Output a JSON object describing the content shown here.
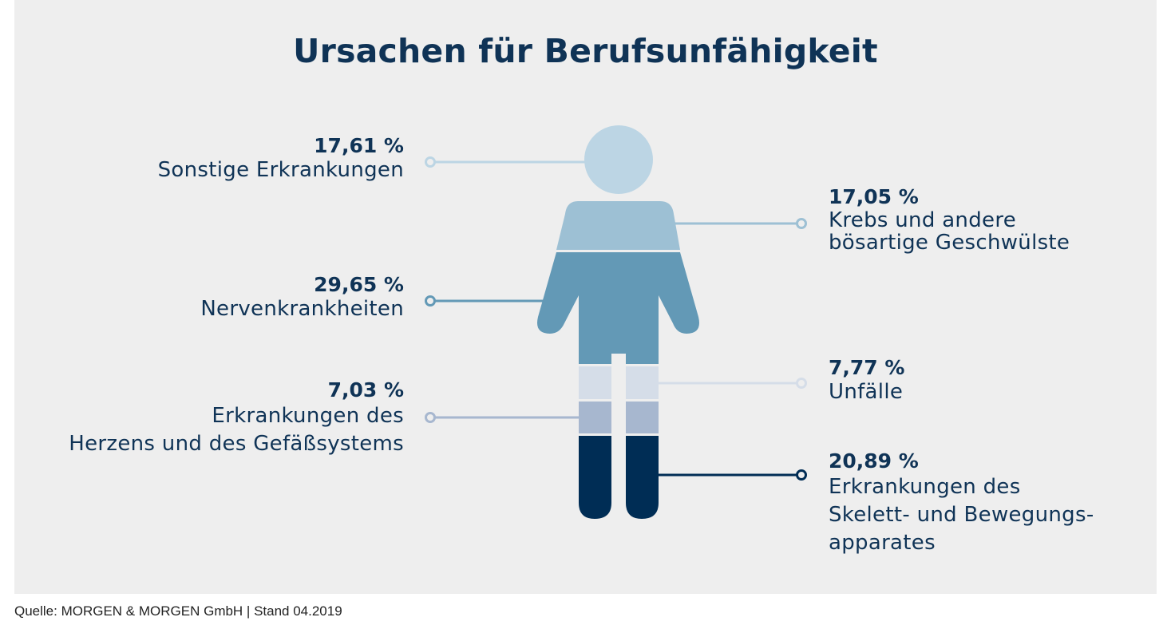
{
  "title": "Ursachen für Berufsunfähigkeit",
  "source": "Quelle: MORGEN & MORGEN GmbH | Stand 04.2019",
  "colors": {
    "background_panel": "#eeeeee",
    "text": "#0f3356",
    "sonstige": "#bcd5e4",
    "krebs": "#9dc0d4",
    "nerven": "#6399b6",
    "unfaelle": "#d5dde8",
    "herz": "#a7b7cf",
    "skelett": "#002d55"
  },
  "chart_data": {
    "type": "pie",
    "title": "Ursachen für Berufsunfähigkeit",
    "unit": "%",
    "segments": [
      {
        "label": "Sonstige Erkrankungen",
        "value": 17.61,
        "display": "17,61 %",
        "color": "#bcd5e4",
        "body_part": "head",
        "side": "left"
      },
      {
        "label": "Krebs und andere\nbösartige Geschwülste",
        "value": 17.05,
        "display": "17,05 %",
        "color": "#9dc0d4",
        "body_part": "shoulders",
        "side": "right"
      },
      {
        "label": "Nervenkrankheiten",
        "value": 29.65,
        "display": "29,65 %",
        "color": "#6399b6",
        "body_part": "torso",
        "side": "left"
      },
      {
        "label": "Unfälle",
        "value": 7.77,
        "display": "7,77 %",
        "color": "#d5dde8",
        "body_part": "upper legs",
        "side": "right"
      },
      {
        "label": "Erkrankungen des\nHerzens und des Gefäßsystems",
        "value": 7.03,
        "display": "7,03 %",
        "color": "#a7b7cf",
        "body_part": "knees",
        "side": "left"
      },
      {
        "label": "Erkrankungen des\nSkelett- und Bewegungs-\napparates",
        "value": 20.89,
        "display": "20,89 %",
        "color": "#002d55",
        "body_part": "lower legs",
        "side": "right"
      }
    ]
  }
}
